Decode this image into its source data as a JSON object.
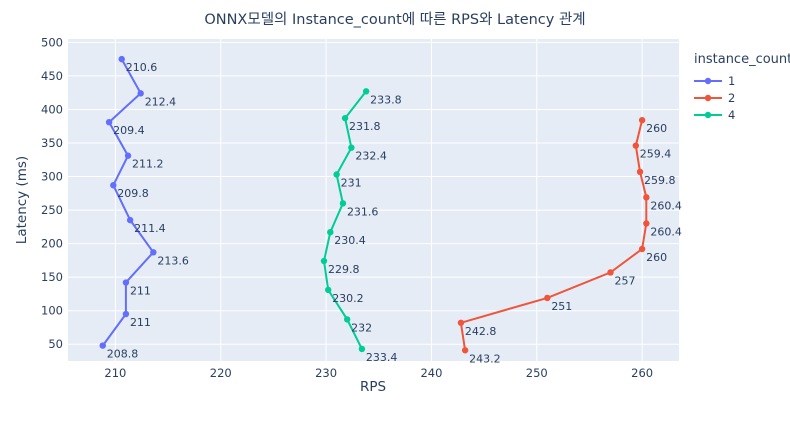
{
  "chart_data": {
    "type": "line",
    "title": "ONNX모델의 Instance_count에 따른 RPS와 Latency 관계",
    "xlabel": "RPS",
    "ylabel": "Latency (ms)",
    "xlim": [
      205.5,
      263.5
    ],
    "ylim": [
      25,
      505
    ],
    "xticks": [
      210,
      220,
      230,
      240,
      250,
      260
    ],
    "yticks": [
      50,
      100,
      150,
      200,
      250,
      300,
      350,
      400,
      450,
      500
    ],
    "grid": true,
    "legend": {
      "title": "instance_count",
      "position": "right"
    },
    "series": [
      {
        "name": "1",
        "color": "#636efa",
        "points": [
          {
            "x": 208.8,
            "y": 48,
            "label": "208.8"
          },
          {
            "x": 211.0,
            "y": 95,
            "label": "211"
          },
          {
            "x": 211.0,
            "y": 142,
            "label": "211"
          },
          {
            "x": 213.6,
            "y": 187,
            "label": "213.6"
          },
          {
            "x": 211.4,
            "y": 235,
            "label": "211.4"
          },
          {
            "x": 209.8,
            "y": 287,
            "label": "209.8"
          },
          {
            "x": 211.2,
            "y": 331,
            "label": "211.2"
          },
          {
            "x": 209.4,
            "y": 381,
            "label": "209.4"
          },
          {
            "x": 212.4,
            "y": 424,
            "label": "212.4"
          },
          {
            "x": 210.6,
            "y": 475,
            "label": "210.6"
          }
        ]
      },
      {
        "name": "2",
        "color": "#ef553b",
        "points": [
          {
            "x": 243.2,
            "y": 41,
            "label": "243.2"
          },
          {
            "x": 242.8,
            "y": 82,
            "label": "242.8"
          },
          {
            "x": 251.0,
            "y": 119,
            "label": "251"
          },
          {
            "x": 257.0,
            "y": 157,
            "label": "257"
          },
          {
            "x": 260.0,
            "y": 192,
            "label": "260"
          },
          {
            "x": 260.4,
            "y": 230,
            "label": "260.4"
          },
          {
            "x": 260.4,
            "y": 269,
            "label": "260.4"
          },
          {
            "x": 259.8,
            "y": 307,
            "label": "259.8"
          },
          {
            "x": 259.4,
            "y": 346,
            "label": "259.4"
          },
          {
            "x": 260.0,
            "y": 384,
            "label": "260"
          }
        ]
      },
      {
        "name": "4",
        "color": "#00cc96",
        "points": [
          {
            "x": 233.4,
            "y": 43,
            "label": "233.4"
          },
          {
            "x": 232.0,
            "y": 87,
            "label": "232"
          },
          {
            "x": 230.2,
            "y": 131,
            "label": "230.2"
          },
          {
            "x": 229.8,
            "y": 174,
            "label": "229.8"
          },
          {
            "x": 230.4,
            "y": 217,
            "label": "230.4"
          },
          {
            "x": 231.6,
            "y": 260,
            "label": "231.6"
          },
          {
            "x": 231.0,
            "y": 303,
            "label": "231"
          },
          {
            "x": 232.4,
            "y": 343,
            "label": "232.4"
          },
          {
            "x": 231.8,
            "y": 387,
            "label": "231.8"
          },
          {
            "x": 233.8,
            "y": 427,
            "label": "233.8"
          }
        ]
      }
    ]
  }
}
